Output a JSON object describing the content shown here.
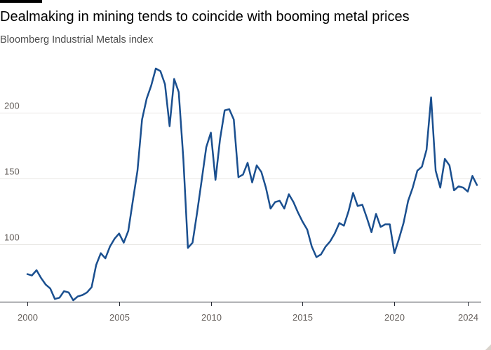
{
  "header": {
    "title": "Dealmaking in mining tends to coincide with booming metal prices",
    "subtitle": "Bloomberg Industrial Metals index"
  },
  "colors": {
    "line": "#1a4f8f",
    "grid": "#e8e6e3",
    "axis": "#262a33",
    "tick_text": "#66605c"
  },
  "chart_data": {
    "type": "line",
    "title": "Dealmaking in mining tends to coincide with booming metal prices",
    "subtitle": "Bloomberg Industrial Metals index",
    "xlabel": "",
    "ylabel": "",
    "xlim": [
      2000,
      2024.5
    ],
    "ylim": [
      57,
      235
    ],
    "x_ticks": [
      2000,
      2005,
      2010,
      2015,
      2020,
      2024
    ],
    "x_tick_labels": [
      "2000",
      "2005",
      "2010",
      "2015",
      "2020",
      "2024"
    ],
    "y_ticks": [
      100,
      150,
      200
    ],
    "y_tick_labels": [
      "100",
      "150",
      "200"
    ],
    "grid": "horizontal",
    "legend": "none",
    "series": [
      {
        "points": [
          [
            2000.0,
            77
          ],
          [
            2000.25,
            76
          ],
          [
            2000.5,
            80
          ],
          [
            2000.75,
            74
          ],
          [
            2001.0,
            69
          ],
          [
            2001.25,
            66
          ],
          [
            2001.5,
            58
          ],
          [
            2001.75,
            59
          ],
          [
            2002.0,
            64
          ],
          [
            2002.25,
            63
          ],
          [
            2002.5,
            57
          ],
          [
            2002.75,
            60
          ],
          [
            2003.0,
            61
          ],
          [
            2003.25,
            63
          ],
          [
            2003.5,
            67
          ],
          [
            2003.75,
            84
          ],
          [
            2004.0,
            93
          ],
          [
            2004.25,
            89
          ],
          [
            2004.5,
            98
          ],
          [
            2004.75,
            104
          ],
          [
            2005.0,
            108
          ],
          [
            2005.25,
            101
          ],
          [
            2005.5,
            110
          ],
          [
            2005.75,
            133
          ],
          [
            2006.0,
            156
          ],
          [
            2006.25,
            195
          ],
          [
            2006.5,
            211
          ],
          [
            2006.75,
            221
          ],
          [
            2007.0,
            234
          ],
          [
            2007.25,
            232
          ],
          [
            2007.5,
            222
          ],
          [
            2007.75,
            190
          ],
          [
            2008.0,
            226
          ],
          [
            2008.25,
            216
          ],
          [
            2008.5,
            165
          ],
          [
            2008.75,
            97
          ],
          [
            2009.0,
            101
          ],
          [
            2009.25,
            124
          ],
          [
            2009.5,
            149
          ],
          [
            2009.75,
            174
          ],
          [
            2010.0,
            185
          ],
          [
            2010.25,
            149
          ],
          [
            2010.5,
            180
          ],
          [
            2010.75,
            202
          ],
          [
            2011.0,
            203
          ],
          [
            2011.25,
            195
          ],
          [
            2011.5,
            151
          ],
          [
            2011.75,
            153
          ],
          [
            2012.0,
            162
          ],
          [
            2012.25,
            147
          ],
          [
            2012.5,
            160
          ],
          [
            2012.75,
            155
          ],
          [
            2013.0,
            143
          ],
          [
            2013.25,
            127
          ],
          [
            2013.5,
            132
          ],
          [
            2013.75,
            133
          ],
          [
            2014.0,
            127
          ],
          [
            2014.25,
            138
          ],
          [
            2014.5,
            132
          ],
          [
            2014.75,
            124
          ],
          [
            2015.0,
            117
          ],
          [
            2015.25,
            111
          ],
          [
            2015.5,
            98
          ],
          [
            2015.75,
            90
          ],
          [
            2016.0,
            92
          ],
          [
            2016.25,
            98
          ],
          [
            2016.5,
            102
          ],
          [
            2016.75,
            108
          ],
          [
            2017.0,
            116
          ],
          [
            2017.25,
            114
          ],
          [
            2017.5,
            125
          ],
          [
            2017.75,
            139
          ],
          [
            2018.0,
            129
          ],
          [
            2018.25,
            130
          ],
          [
            2018.5,
            120
          ],
          [
            2018.75,
            109
          ],
          [
            2019.0,
            123
          ],
          [
            2019.25,
            113
          ],
          [
            2019.5,
            115
          ],
          [
            2019.75,
            115
          ],
          [
            2020.0,
            93
          ],
          [
            2020.25,
            104
          ],
          [
            2020.5,
            116
          ],
          [
            2020.75,
            133
          ],
          [
            2021.0,
            143
          ],
          [
            2021.25,
            156
          ],
          [
            2021.5,
            159
          ],
          [
            2021.75,
            172
          ],
          [
            2022.0,
            212
          ],
          [
            2022.25,
            156
          ],
          [
            2022.5,
            143
          ],
          [
            2022.75,
            165
          ],
          [
            2023.0,
            160
          ],
          [
            2023.25,
            141
          ],
          [
            2023.5,
            144
          ],
          [
            2023.75,
            143
          ],
          [
            2024.0,
            140
          ],
          [
            2024.25,
            152
          ],
          [
            2024.5,
            145
          ]
        ]
      }
    ]
  }
}
